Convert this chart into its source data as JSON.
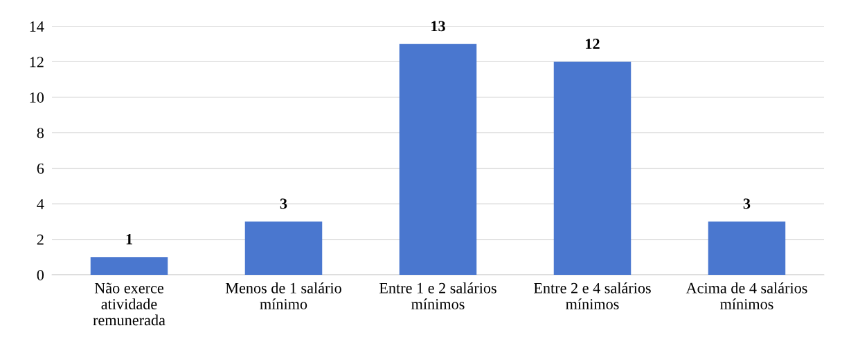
{
  "chart_data": {
    "type": "bar",
    "categories": [
      "Não exerce\natividade\nremunerada",
      "Menos de 1 salário\nmínimo",
      "Entre 1 e 2 salários\nmínimos",
      "Entre 2 e 4 salários\nmínimos",
      "Acima de 4 salários\nmínimos"
    ],
    "values": [
      1,
      3,
      13,
      12,
      3
    ],
    "color": "#4a77cf",
    "ylim": [
      0,
      14
    ],
    "yticks": [
      0,
      2,
      4,
      6,
      8,
      10,
      12,
      14
    ],
    "grid": "y",
    "data_labels": true
  }
}
